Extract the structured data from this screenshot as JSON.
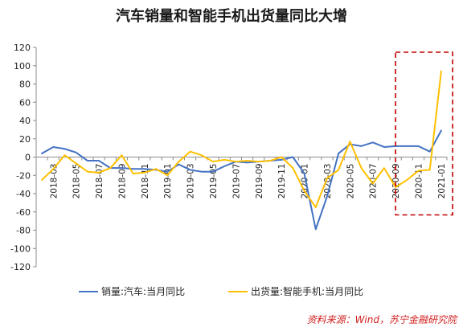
{
  "chart_data": {
    "type": "line",
    "title": "汽车销量和智能手机出货量同比大增",
    "x": [
      "2018-02",
      "2018-03",
      "2018-04",
      "2018-05",
      "2018-06",
      "2018-07",
      "2018-08",
      "2018-09",
      "2018-10",
      "2018-11",
      "2018-12",
      "2019-01",
      "2019-02",
      "2019-03",
      "2019-04",
      "2019-05",
      "2019-06",
      "2019-07",
      "2019-08",
      "2019-09",
      "2019-10",
      "2019-11",
      "2019-12",
      "2020-01",
      "2020-02",
      "2020-03",
      "2020-04",
      "2020-05",
      "2020-06",
      "2020-07",
      "2020-08",
      "2020-09",
      "2020-10",
      "2020-11",
      "2020-12",
      "2021-01"
    ],
    "xtick_labels": [
      "2018-03",
      "2018-05",
      "2018-07",
      "2018-09",
      "2018-11",
      "2019-01",
      "2019-03",
      "2019-05",
      "2019-07",
      "2019-09",
      "2019-11",
      "2020-01",
      "2020-03",
      "2020-05",
      "2020-07",
      "2020-09",
      "2020-11",
      "2021-01"
    ],
    "ylim": [
      -120,
      120
    ],
    "yticks": [
      -120,
      -100,
      -80,
      -60,
      -40,
      -20,
      0,
      20,
      40,
      60,
      80,
      100,
      120
    ],
    "grid": false,
    "legend_position": "bottom",
    "series": [
      {
        "name": "销量:汽车:当月同比",
        "color": "#4472c4",
        "values": [
          4,
          11,
          9,
          5,
          -4,
          -4,
          -12,
          -12,
          -13,
          -13,
          -14,
          -16,
          -8,
          -14,
          -16,
          -16,
          -10,
          -5,
          -6,
          -5,
          -4,
          -3,
          0,
          -18,
          -79,
          -43,
          4,
          14,
          12,
          16,
          11,
          12,
          12,
          12,
          6,
          29
        ]
      },
      {
        "name": "出货量:智能手机:当月同比",
        "color": "#ffc000",
        "values": [
          -25,
          -13,
          2,
          -7,
          -16,
          -17,
          -12,
          2,
          -18,
          -17,
          -13,
          -20,
          -5,
          6,
          2,
          -5,
          -3,
          -5,
          -4,
          -5,
          -4,
          0,
          -12,
          -37,
          -55,
          -23,
          -14,
          17,
          -12,
          -29,
          -12,
          -33,
          -25,
          -15,
          -14,
          94
        ]
      }
    ],
    "annotation": {
      "style": "dashed-box",
      "color": "#c00000",
      "x_from": "2020-10",
      "x_to": "2021-01"
    }
  },
  "source_note": "资料来源：Wind，苏宁金融研究院"
}
